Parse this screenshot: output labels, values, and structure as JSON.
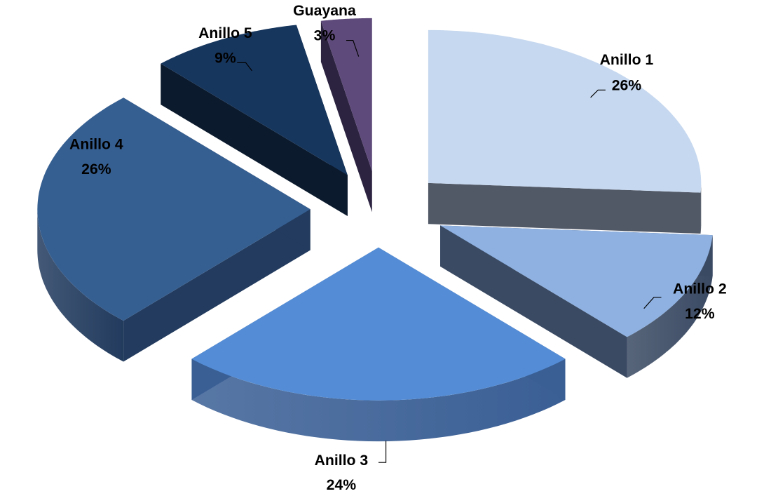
{
  "chart_data": {
    "type": "pie",
    "style": "3d-exploded",
    "title": "",
    "slices": [
      {
        "label": "Anillo 1",
        "value": 26,
        "value_label": "26%",
        "color": "#C6D8EF",
        "side_color": "#515866"
      },
      {
        "label": "Anillo 2",
        "value": 12,
        "value_label": "12%",
        "color": "#8EB1E1",
        "side_color": "#3A4A63"
      },
      {
        "label": "Anillo 3",
        "value": 24,
        "value_label": "24%",
        "color": "#548DD6",
        "side_color": "#3A5F95"
      },
      {
        "label": "Anillo 4",
        "value": 26,
        "value_label": "26%",
        "color": "#365F91",
        "side_color": "#223B5E"
      },
      {
        "label": "Anillo 5",
        "value": 9,
        "value_label": "9%",
        "color": "#17365D",
        "side_color": "#0B1A2D"
      },
      {
        "label": "Guayana",
        "value": 3,
        "value_label": "3%",
        "color": "#5F4B7B",
        "side_color": "#2C2340"
      }
    ]
  }
}
